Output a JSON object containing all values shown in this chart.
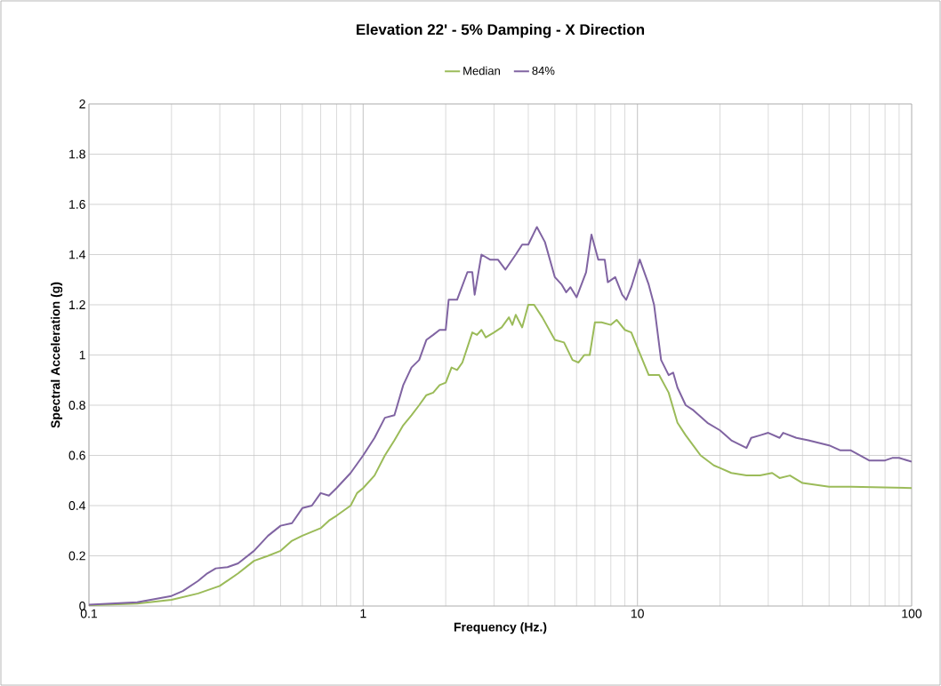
{
  "chart_data": {
    "type": "line",
    "title": "Elevation 22' - 5% Damping - X Direction",
    "xlabel": "Frequency (Hz.)",
    "ylabel": "Spectral Acceleration (g)",
    "log": "x",
    "grid": true,
    "legend": "top",
    "xlim": [
      0.1,
      100
    ],
    "xticks": [
      0.1,
      1,
      10,
      100
    ],
    "ylim": [
      0,
      2
    ],
    "yticks": [
      0,
      0.2,
      0.4,
      0.6,
      0.8,
      1,
      1.2,
      1.4,
      1.6,
      1.8,
      2
    ],
    "series": [
      {
        "name": "Median",
        "color": "#9bbb59",
        "x": [
          0.1,
          0.15,
          0.2,
          0.25,
          0.3,
          0.35,
          0.4,
          0.45,
          0.5,
          0.55,
          0.6,
          0.7,
          0.75,
          0.8,
          0.9,
          0.95,
          1.0,
          1.1,
          1.2,
          1.3,
          1.4,
          1.5,
          1.6,
          1.7,
          1.8,
          1.9,
          2.0,
          2.1,
          2.2,
          2.3,
          2.5,
          2.6,
          2.7,
          2.8,
          3.0,
          3.2,
          3.4,
          3.5,
          3.6,
          3.8,
          4.0,
          4.2,
          4.5,
          5.0,
          5.4,
          5.8,
          6.1,
          6.4,
          6.7,
          7.0,
          7.4,
          8.0,
          8.4,
          9.0,
          9.5,
          10,
          11,
          12,
          13,
          14,
          15,
          17,
          19,
          20,
          22,
          25,
          28,
          31,
          33,
          36,
          40,
          50,
          60,
          100
        ],
        "values": [
          0.003,
          0.01,
          0.025,
          0.05,
          0.08,
          0.13,
          0.18,
          0.2,
          0.22,
          0.26,
          0.28,
          0.31,
          0.34,
          0.36,
          0.4,
          0.45,
          0.47,
          0.52,
          0.6,
          0.66,
          0.72,
          0.76,
          0.8,
          0.84,
          0.85,
          0.88,
          0.89,
          0.95,
          0.94,
          0.97,
          1.09,
          1.08,
          1.1,
          1.07,
          1.09,
          1.11,
          1.15,
          1.12,
          1.16,
          1.11,
          1.2,
          1.2,
          1.15,
          1.06,
          1.05,
          0.98,
          0.97,
          1.0,
          1.0,
          1.13,
          1.13,
          1.12,
          1.14,
          1.1,
          1.09,
          1.03,
          0.92,
          0.92,
          0.85,
          0.73,
          0.68,
          0.6,
          0.56,
          0.55,
          0.53,
          0.52,
          0.52,
          0.53,
          0.51,
          0.52,
          0.49,
          0.475,
          0.475,
          0.47
        ]
      },
      {
        "name": "84%",
        "color": "#8064a2",
        "x": [
          0.1,
          0.15,
          0.2,
          0.22,
          0.25,
          0.27,
          0.29,
          0.32,
          0.35,
          0.4,
          0.45,
          0.5,
          0.55,
          0.6,
          0.65,
          0.7,
          0.75,
          0.8,
          0.9,
          1.0,
          1.1,
          1.2,
          1.3,
          1.4,
          1.5,
          1.6,
          1.7,
          1.8,
          1.9,
          2.0,
          2.05,
          2.2,
          2.4,
          2.5,
          2.55,
          2.7,
          2.9,
          3.1,
          3.3,
          3.6,
          3.8,
          4.0,
          4.3,
          4.6,
          5.0,
          5.3,
          5.5,
          5.7,
          6.0,
          6.5,
          6.8,
          7.2,
          7.6,
          7.8,
          8.3,
          8.8,
          9.1,
          9.5,
          10.2,
          11,
          11.5,
          12.2,
          13,
          13.5,
          14,
          15,
          16,
          18,
          20,
          22,
          25,
          26,
          28,
          30,
          33,
          34,
          38,
          42,
          50,
          55,
          60,
          70,
          80,
          85,
          90,
          100
        ],
        "values": [
          0.005,
          0.015,
          0.04,
          0.06,
          0.1,
          0.13,
          0.15,
          0.155,
          0.17,
          0.22,
          0.28,
          0.32,
          0.33,
          0.39,
          0.4,
          0.45,
          0.44,
          0.47,
          0.53,
          0.6,
          0.67,
          0.75,
          0.76,
          0.88,
          0.95,
          0.98,
          1.06,
          1.08,
          1.1,
          1.1,
          1.22,
          1.22,
          1.33,
          1.33,
          1.24,
          1.4,
          1.38,
          1.38,
          1.34,
          1.4,
          1.44,
          1.44,
          1.51,
          1.45,
          1.31,
          1.28,
          1.25,
          1.27,
          1.23,
          1.33,
          1.48,
          1.38,
          1.38,
          1.29,
          1.31,
          1.24,
          1.22,
          1.27,
          1.38,
          1.28,
          1.2,
          0.98,
          0.92,
          0.93,
          0.87,
          0.8,
          0.78,
          0.73,
          0.7,
          0.66,
          0.63,
          0.67,
          0.68,
          0.69,
          0.67,
          0.69,
          0.67,
          0.66,
          0.64,
          0.62,
          0.62,
          0.58,
          0.58,
          0.59,
          0.59,
          0.575
        ]
      }
    ]
  }
}
